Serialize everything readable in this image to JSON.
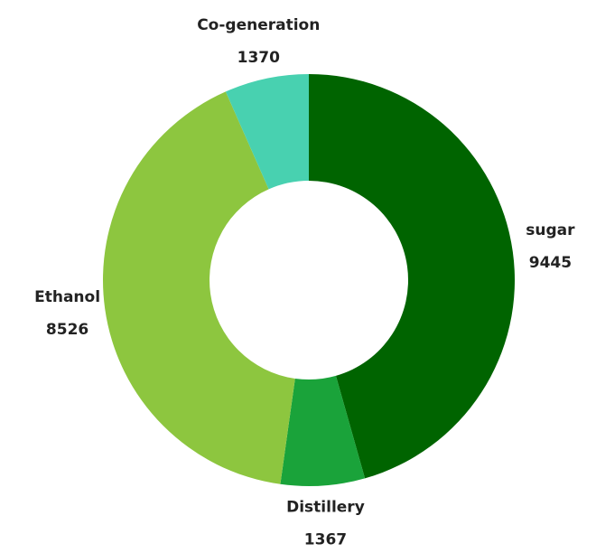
{
  "chart_data": {
    "type": "donut",
    "categories": [
      "sugar",
      "Distillery",
      "Ethanol",
      "Co-generation"
    ],
    "values": [
      9445,
      1367,
      8526,
      1370
    ],
    "colors": [
      "#006400",
      "#1aa33a",
      "#8dc63f",
      "#48d1b0"
    ]
  }
}
